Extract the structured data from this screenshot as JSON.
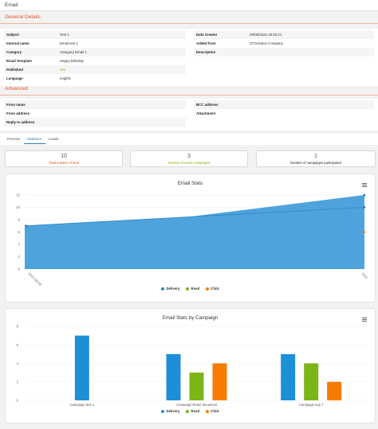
{
  "header": {
    "title": "Email"
  },
  "general": {
    "title": "General Details",
    "left_rows": [
      {
        "label": "Subject",
        "value": "Test 1"
      },
      {
        "label": "Internal name",
        "value": "Email test 1"
      },
      {
        "label": "Category",
        "value": "Category Email 1"
      },
      {
        "label": "Email Template",
        "value": "Happy Birthday"
      },
      {
        "label": "Published",
        "value": "Yes"
      },
      {
        "label": "Language",
        "value": "english"
      }
    ],
    "right_rows": [
      {
        "label": "Date Creator",
        "value": "29/08/2022 19:25:21"
      },
      {
        "label": "Added from",
        "value": "GTSolution Company"
      },
      {
        "label": "Description",
        "value": ""
      }
    ]
  },
  "advanced": {
    "title": "Advanced",
    "left_rows": [
      {
        "label": "From name",
        "value": ""
      },
      {
        "label": "From address",
        "value": ""
      },
      {
        "label": "Reply to address",
        "value": ""
      }
    ],
    "right_rows": [
      {
        "label": "BCC address",
        "value": ""
      },
      {
        "label": "Attachment",
        "value": ""
      }
    ]
  },
  "tabs": [
    {
      "label": "Preview"
    },
    {
      "label": "Statistics"
    },
    {
      "label": "Leads"
    }
  ],
  "active_tab": "Statistics",
  "cards": [
    {
      "number": "10",
      "caption": "Total number of lead",
      "color": "#e0532a"
    },
    {
      "number": "3",
      "caption": "Number of active campaigns",
      "color": "#7cb518"
    },
    {
      "number": "1",
      "caption": "Number of campaigns participated",
      "color": "#222222"
    }
  ],
  "colors": {
    "delivery": "#1e8fd6",
    "read": "#7cb518",
    "click": "#f57c00",
    "accent": "#e0532a",
    "area": "#4fa3dc"
  },
  "stats_chart": {
    "title": "Email Stats",
    "legend": [
      "Delivery",
      "Read",
      "Click"
    ],
    "chart_data": {
      "type": "area",
      "title": "Email Stats",
      "x": [
        "2022-08-28",
        "2022"
      ],
      "x_tick_labels": [
        "2022-08-28",
        "2022"
      ],
      "yticks": [
        0,
        2,
        4,
        6,
        8,
        10,
        12
      ],
      "ylim": [
        0,
        12
      ],
      "series": [
        {
          "name": "Delivery",
          "values": [
            7,
            10
          ]
        },
        {
          "name": "Read",
          "values": [
            null,
            12
          ]
        },
        {
          "name": "Click",
          "values": [
            null,
            6
          ]
        }
      ]
    }
  },
  "campaign_chart": {
    "title": "Email Stats by Campaign",
    "legend": [
      "Delivery",
      "Read",
      "Click"
    ],
    "chart_data": {
      "type": "bar",
      "title": "Email Stats by Campaign",
      "categories": [
        "Campaign test 1",
        "Campaign Roset donanioal",
        "Campaign sep 7"
      ],
      "yticks": [
        0,
        2,
        4,
        6,
        8
      ],
      "ylim": [
        0,
        8
      ],
      "series": [
        {
          "name": "Delivery",
          "values": [
            7,
            5,
            5
          ]
        },
        {
          "name": "Read",
          "values": [
            0,
            3,
            4
          ]
        },
        {
          "name": "Click",
          "values": [
            0,
            4,
            2
          ]
        }
      ]
    }
  }
}
